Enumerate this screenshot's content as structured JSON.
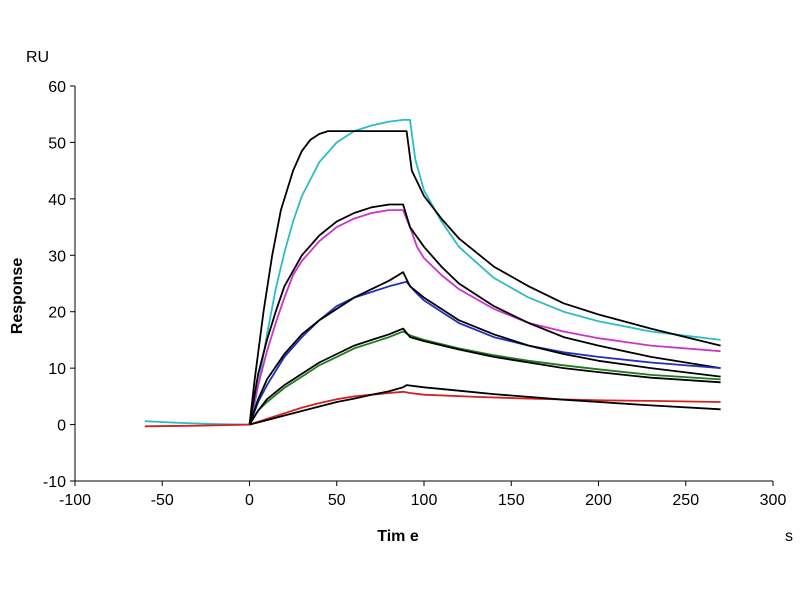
{
  "chart_data": {
    "type": "line",
    "title": "",
    "xlabel": "Tim e",
    "ylabel": "Response",
    "x_unit": "s",
    "y_unit": "RU",
    "xlim": [
      -100,
      300
    ],
    "ylim": [
      -10,
      60
    ],
    "x_ticks": [
      -100,
      -50,
      0,
      50,
      100,
      150,
      200,
      250,
      300
    ],
    "y_ticks": [
      -10,
      0,
      10,
      20,
      30,
      40,
      50,
      60
    ],
    "grid": false,
    "legend": "none",
    "series": [
      {
        "color": "#2bbcc8",
        "points": [
          [
            -60,
            0.6
          ],
          [
            -40,
            0.3
          ],
          [
            -20,
            0.1
          ],
          [
            0,
            0
          ],
          [
            2,
            2
          ],
          [
            5,
            7
          ],
          [
            10,
            16
          ],
          [
            15,
            24
          ],
          [
            20,
            30.5
          ],
          [
            25,
            36
          ],
          [
            30,
            40.5
          ],
          [
            40,
            46.5
          ],
          [
            50,
            50
          ],
          [
            60,
            52
          ],
          [
            70,
            53
          ],
          [
            80,
            53.7
          ],
          [
            88,
            54
          ],
          [
            92,
            54
          ],
          [
            95,
            47
          ],
          [
            100,
            41.5
          ],
          [
            110,
            36
          ],
          [
            120,
            31.5
          ],
          [
            140,
            26
          ],
          [
            160,
            22.5
          ],
          [
            180,
            20
          ],
          [
            200,
            18.3
          ],
          [
            230,
            16.5
          ],
          [
            270,
            15
          ]
        ]
      },
      {
        "color": "#000000",
        "points": [
          [
            0,
            0
          ],
          [
            3,
            8
          ],
          [
            8,
            20
          ],
          [
            13,
            30
          ],
          [
            18,
            38
          ],
          [
            25,
            45
          ],
          [
            30,
            48.5
          ],
          [
            35,
            50.5
          ],
          [
            40,
            51.5
          ],
          [
            45,
            52
          ],
          [
            90,
            52
          ],
          [
            93,
            45
          ],
          [
            100,
            40.5
          ],
          [
            110,
            36.5
          ],
          [
            120,
            33
          ],
          [
            140,
            28
          ],
          [
            160,
            24.5
          ],
          [
            180,
            21.5
          ],
          [
            200,
            19.5
          ],
          [
            230,
            17
          ],
          [
            270,
            14
          ]
        ]
      },
      {
        "color": "#cc33cc",
        "points": [
          [
            0,
            0
          ],
          [
            5,
            7
          ],
          [
            10,
            13
          ],
          [
            15,
            18
          ],
          [
            20,
            22.5
          ],
          [
            25,
            26.5
          ],
          [
            30,
            29
          ],
          [
            40,
            32.5
          ],
          [
            50,
            35
          ],
          [
            60,
            36.5
          ],
          [
            70,
            37.5
          ],
          [
            80,
            38
          ],
          [
            88,
            38
          ],
          [
            92,
            35
          ],
          [
            96,
            31.5
          ],
          [
            100,
            29.5
          ],
          [
            110,
            26.5
          ],
          [
            120,
            24
          ],
          [
            140,
            20.5
          ],
          [
            160,
            18
          ],
          [
            180,
            16.5
          ],
          [
            200,
            15.3
          ],
          [
            230,
            14
          ],
          [
            270,
            13
          ]
        ]
      },
      {
        "color": "#000000",
        "points": [
          [
            0,
            0
          ],
          [
            5,
            9
          ],
          [
            10,
            15
          ],
          [
            15,
            20
          ],
          [
            20,
            24.5
          ],
          [
            30,
            30
          ],
          [
            40,
            33.5
          ],
          [
            50,
            36
          ],
          [
            60,
            37.5
          ],
          [
            70,
            38.5
          ],
          [
            80,
            39
          ],
          [
            88,
            39
          ],
          [
            92,
            35
          ],
          [
            100,
            31.5
          ],
          [
            110,
            28
          ],
          [
            120,
            25
          ],
          [
            140,
            21
          ],
          [
            160,
            18
          ],
          [
            180,
            15.5
          ],
          [
            200,
            14
          ],
          [
            230,
            12
          ],
          [
            270,
            10
          ]
        ]
      },
      {
        "color": "#1f2fbf",
        "points": [
          [
            0,
            0
          ],
          [
            5,
            4
          ],
          [
            10,
            7
          ],
          [
            20,
            12
          ],
          [
            30,
            15.5
          ],
          [
            40,
            18.5
          ],
          [
            50,
            21
          ],
          [
            60,
            22.5
          ],
          [
            70,
            23.5
          ],
          [
            80,
            24.5
          ],
          [
            90,
            25.3
          ],
          [
            95,
            23.5
          ],
          [
            100,
            22
          ],
          [
            110,
            20
          ],
          [
            120,
            18
          ],
          [
            140,
            15.5
          ],
          [
            160,
            14
          ],
          [
            180,
            12.8
          ],
          [
            200,
            12
          ],
          [
            230,
            11
          ],
          [
            270,
            10
          ]
        ]
      },
      {
        "color": "#000000",
        "points": [
          [
            0,
            0
          ],
          [
            5,
            4.5
          ],
          [
            10,
            8
          ],
          [
            20,
            12.5
          ],
          [
            30,
            16
          ],
          [
            40,
            18.5
          ],
          [
            50,
            20.5
          ],
          [
            60,
            22.5
          ],
          [
            70,
            24
          ],
          [
            80,
            25.5
          ],
          [
            88,
            27
          ],
          [
            92,
            24.5
          ],
          [
            100,
            22.5
          ],
          [
            110,
            20.5
          ],
          [
            120,
            18.5
          ],
          [
            140,
            16
          ],
          [
            160,
            14
          ],
          [
            180,
            12.5
          ],
          [
            200,
            11.3
          ],
          [
            230,
            10
          ],
          [
            270,
            8.5
          ]
        ]
      },
      {
        "color": "#1e7a1e",
        "points": [
          [
            0,
            0
          ],
          [
            5,
            2.5
          ],
          [
            10,
            4
          ],
          [
            20,
            6.5
          ],
          [
            30,
            8.5
          ],
          [
            40,
            10.5
          ],
          [
            50,
            12
          ],
          [
            60,
            13.5
          ],
          [
            70,
            14.5
          ],
          [
            80,
            15.5
          ],
          [
            88,
            16.5
          ],
          [
            92,
            15.8
          ],
          [
            100,
            15
          ],
          [
            120,
            13.5
          ],
          [
            140,
            12.3
          ],
          [
            160,
            11.3
          ],
          [
            180,
            10.5
          ],
          [
            200,
            9.8
          ],
          [
            230,
            8.8
          ],
          [
            270,
            8
          ]
        ]
      },
      {
        "color": "#000000",
        "points": [
          [
            0,
            0
          ],
          [
            5,
            2.5
          ],
          [
            10,
            4.5
          ],
          [
            20,
            7
          ],
          [
            30,
            9
          ],
          [
            40,
            11
          ],
          [
            50,
            12.5
          ],
          [
            60,
            14
          ],
          [
            70,
            15
          ],
          [
            80,
            16
          ],
          [
            88,
            17
          ],
          [
            92,
            15.5
          ],
          [
            100,
            14.8
          ],
          [
            120,
            13.3
          ],
          [
            140,
            12
          ],
          [
            160,
            11
          ],
          [
            180,
            10
          ],
          [
            200,
            9.3
          ],
          [
            230,
            8.3
          ],
          [
            270,
            7.5
          ]
        ]
      },
      {
        "color": "#d42020",
        "points": [
          [
            -60,
            -0.3
          ],
          [
            -30,
            -0.2
          ],
          [
            0,
            0
          ],
          [
            10,
            1
          ],
          [
            20,
            2
          ],
          [
            30,
            3
          ],
          [
            40,
            3.8
          ],
          [
            50,
            4.5
          ],
          [
            60,
            5
          ],
          [
            70,
            5.3
          ],
          [
            80,
            5.6
          ],
          [
            88,
            5.8
          ],
          [
            92,
            5.6
          ],
          [
            100,
            5.3
          ],
          [
            130,
            4.9
          ],
          [
            160,
            4.6
          ],
          [
            200,
            4.3
          ],
          [
            230,
            4.2
          ],
          [
            270,
            4
          ]
        ]
      },
      {
        "color": "#000000",
        "points": [
          [
            0,
            0
          ],
          [
            10,
            0.8
          ],
          [
            20,
            1.6
          ],
          [
            30,
            2.4
          ],
          [
            40,
            3.2
          ],
          [
            50,
            4
          ],
          [
            60,
            4.6
          ],
          [
            70,
            5.3
          ],
          [
            80,
            5.9
          ],
          [
            88,
            6.6
          ],
          [
            90,
            7
          ],
          [
            100,
            6.6
          ],
          [
            120,
            6
          ],
          [
            140,
            5.4
          ],
          [
            160,
            4.9
          ],
          [
            180,
            4.4
          ],
          [
            200,
            4
          ],
          [
            230,
            3.4
          ],
          [
            270,
            2.7
          ]
        ]
      }
    ]
  }
}
